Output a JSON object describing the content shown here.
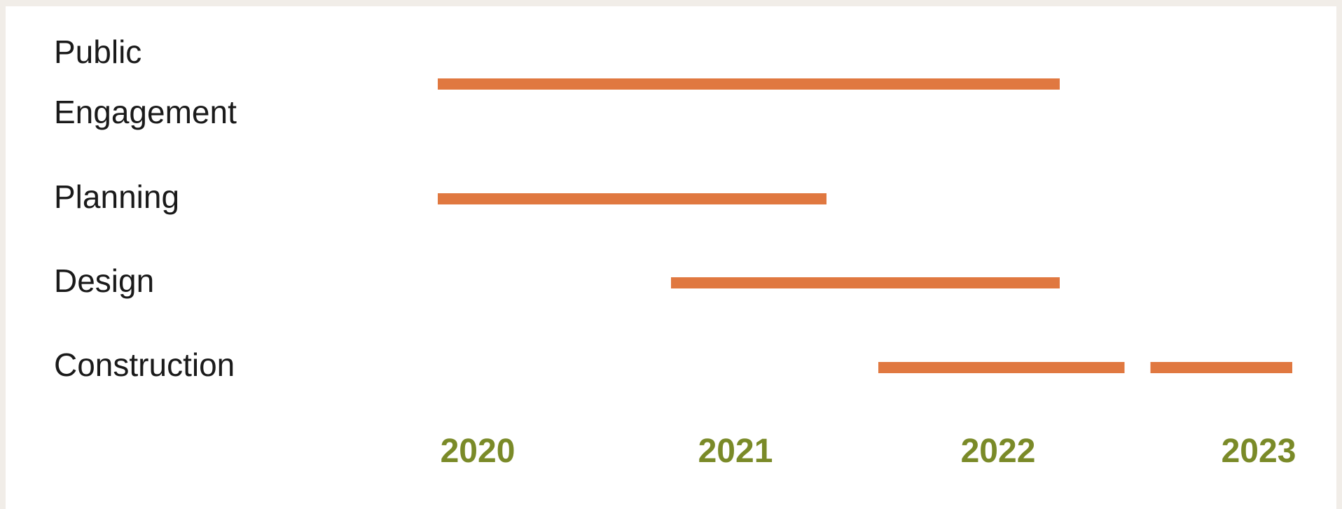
{
  "chart_data": {
    "type": "gantt",
    "title": "",
    "xlabel": "",
    "ylabel": "",
    "x_ticks": [
      "2020",
      "2021",
      "2022",
      "2023"
    ],
    "xlim": [
      2020,
      2023.15
    ],
    "rows": [
      {
        "label_lines": [
          "Public",
          "Engagement"
        ],
        "segments": [
          [
            2020,
            2022.4
          ]
        ]
      },
      {
        "label_lines": [
          "Planning"
        ],
        "segments": [
          [
            2020,
            2021.5
          ]
        ]
      },
      {
        "label_lines": [
          "Design"
        ],
        "segments": [
          [
            2020.9,
            2022.4
          ]
        ]
      },
      {
        "label_lines": [
          "Construction"
        ],
        "segments": [
          [
            2021.7,
            2022.65
          ],
          [
            2022.75,
            2023.3
          ]
        ]
      }
    ],
    "grid": false,
    "legend": "none"
  },
  "colors": {
    "bar": "#e07840",
    "tick": "#7a8a28",
    "label": "#1a1a1a",
    "background": "#ffffff",
    "frame": "#f1ede8"
  }
}
